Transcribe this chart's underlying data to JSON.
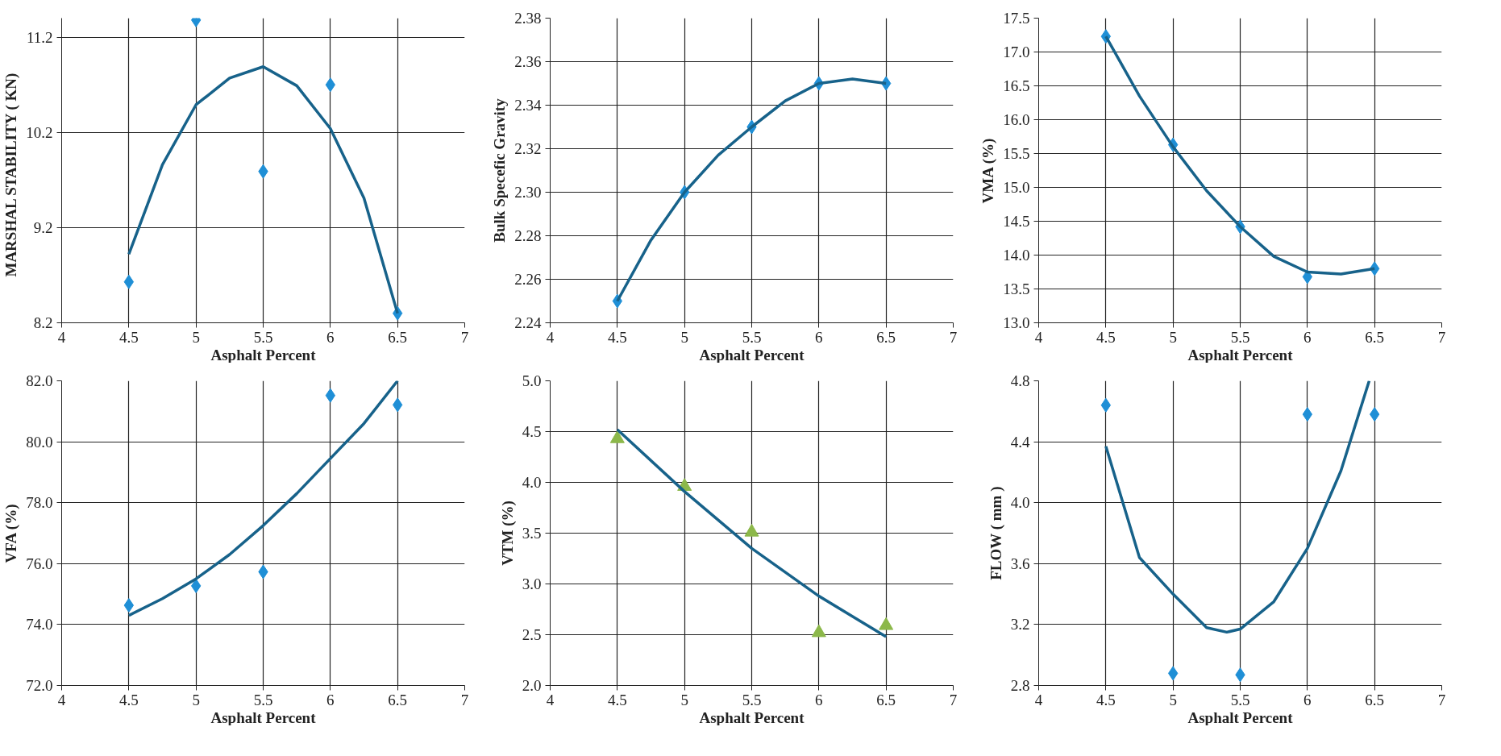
{
  "chart_data": [
    {
      "type": "scatter",
      "xlabel": "Asphalt Percent",
      "ylabel": "MARSHAL STABILITY   ( KN)",
      "xlim": [
        4,
        7
      ],
      "xticks": [
        4,
        4.5,
        5,
        5.5,
        6,
        6.5,
        7
      ],
      "ylim": [
        8.2,
        11.4
      ],
      "yticks": [
        8.2,
        9.2,
        10.2,
        11.2
      ],
      "grid": true,
      "series": [
        {
          "marker": "diamond",
          "color": "#1f8fd6",
          "x": [
            4.5,
            5,
            5.5,
            6,
            6.5
          ],
          "values": [
            8.63,
            11.38,
            9.79,
            10.7,
            8.3
          ]
        },
        {
          "type": "line",
          "color": "#17628a",
          "x": [
            4.5,
            4.75,
            5,
            5.25,
            5.5,
            5.75,
            6,
            6.25,
            6.5
          ],
          "values": [
            8.92,
            9.86,
            10.49,
            10.77,
            10.89,
            10.69,
            10.24,
            9.51,
            8.3
          ]
        }
      ]
    },
    {
      "type": "scatter",
      "xlabel": "Asphalt Percent",
      "ylabel": "Bulk Specefic Gravity",
      "xlim": [
        4,
        7
      ],
      "xticks": [
        4,
        4.5,
        5,
        5.5,
        6,
        6.5,
        7
      ],
      "ylim": [
        2.24,
        2.38
      ],
      "yticks": [
        {
          "value": 2.24,
          "label": "2.24"
        },
        {
          "value": 2.26,
          "label": "2.26"
        },
        {
          "value": 2.28,
          "label": "2.28"
        },
        {
          "value": 2.3,
          "label": "2.30"
        },
        {
          "value": 2.32,
          "label": "2.32"
        },
        {
          "value": 2.34,
          "label": "2.34"
        },
        {
          "value": 2.36,
          "label": "2.36"
        },
        {
          "value": 2.38,
          "label": "2.38"
        }
      ],
      "grid": true,
      "series": [
        {
          "marker": "diamond",
          "color": "#1f8fd6",
          "x": [
            4.5,
            5,
            5.5,
            6,
            6.5
          ],
          "values": [
            2.25,
            2.3,
            2.33,
            2.35,
            2.35
          ]
        },
        {
          "type": "line",
          "color": "#17628a",
          "x": [
            4.5,
            4.75,
            5,
            5.25,
            5.5,
            5.75,
            6,
            6.25,
            6.5
          ],
          "values": [
            2.25,
            2.278,
            2.3,
            2.317,
            2.33,
            2.342,
            2.35,
            2.352,
            2.35
          ]
        }
      ]
    },
    {
      "type": "scatter",
      "xlabel": "Asphalt Percent",
      "ylabel": "VMA (%)",
      "xlim": [
        4,
        7
      ],
      "xticks": [
        4,
        4.5,
        5,
        5.5,
        6,
        6.5,
        7
      ],
      "ylim": [
        13,
        17.5
      ],
      "yticks": [
        {
          "value": 13,
          "label": "13.0"
        },
        13.5,
        {
          "value": 14,
          "label": "14.0"
        },
        14.5,
        {
          "value": 15,
          "label": "15.0"
        },
        15.5,
        {
          "value": 16,
          "label": "16.0"
        },
        16.5,
        {
          "value": 17,
          "label": "17.0"
        },
        17.5
      ],
      "grid": true,
      "series": [
        {
          "marker": "diamond",
          "color": "#1f8fd6",
          "x": [
            4.5,
            5,
            5.5,
            6,
            6.5
          ],
          "values": [
            17.23,
            15.63,
            14.42,
            13.68,
            13.8
          ]
        },
        {
          "type": "line",
          "color": "#17628a",
          "x": [
            4.5,
            4.75,
            5,
            5.25,
            5.5,
            5.75,
            6,
            6.25,
            6.5
          ],
          "values": [
            17.23,
            16.35,
            15.6,
            14.95,
            14.42,
            13.98,
            13.75,
            13.72,
            13.8
          ]
        }
      ]
    },
    {
      "type": "scatter",
      "xlabel": "Asphalt Percent",
      "ylabel": "VFA (%)",
      "xlim": [
        4,
        7
      ],
      "xticks": [
        4,
        4.5,
        5,
        5.5,
        6,
        6.5,
        7
      ],
      "ylim": [
        72,
        82
      ],
      "yticks": [
        {
          "value": 72,
          "label": "72.0"
        },
        {
          "value": 74,
          "label": "74.0"
        },
        {
          "value": 76,
          "label": "76.0"
        },
        {
          "value": 78,
          "label": "78.0"
        },
        {
          "value": 80,
          "label": "80.0"
        },
        {
          "value": 82,
          "label": "82.0"
        }
      ],
      "grid": true,
      "series": [
        {
          "marker": "diamond",
          "color": "#1f8fd6",
          "x": [
            4.5,
            5,
            5.5,
            6,
            6.5
          ],
          "values": [
            74.63,
            75.27,
            75.73,
            81.52,
            81.21
          ]
        },
        {
          "type": "line",
          "color": "#17628a",
          "x": [
            4.5,
            4.75,
            5,
            5.25,
            5.5,
            5.75,
            6,
            6.25,
            6.5
          ],
          "values": [
            74.3,
            74.85,
            75.5,
            76.3,
            77.25,
            78.3,
            79.45,
            80.6,
            82.0
          ]
        }
      ]
    },
    {
      "type": "scatter",
      "xlabel": "Asphalt Percent",
      "ylabel": "VTM (%)",
      "xlim": [
        4,
        7
      ],
      "xticks": [
        4,
        4.5,
        5,
        5.5,
        6,
        6.5,
        7
      ],
      "ylim": [
        2,
        5
      ],
      "yticks": [
        {
          "value": 2,
          "label": "2.0"
        },
        2.5,
        {
          "value": 3,
          "label": "3.0"
        },
        3.5,
        {
          "value": 4,
          "label": "4.0"
        },
        4.5,
        {
          "value": 5,
          "label": "5.0"
        }
      ],
      "grid": true,
      "series": [
        {
          "marker": "triangle",
          "color": "#8cb84a",
          "x": [
            4.5,
            5,
            5.5,
            6,
            6.5
          ],
          "values": [
            4.43,
            3.96,
            3.51,
            2.52,
            2.59
          ]
        },
        {
          "type": "line",
          "color": "#17628a",
          "x": [
            4.5,
            5,
            5.5,
            6,
            6.5
          ],
          "values": [
            4.52,
            3.91,
            3.35,
            2.88,
            2.48
          ]
        }
      ]
    },
    {
      "type": "scatter",
      "xlabel": "Asphalt Percent",
      "ylabel": "FLOW ( mm )",
      "xlim": [
        4,
        7
      ],
      "xticks": [
        4,
        4.5,
        5,
        5.5,
        6,
        6.5,
        7
      ],
      "ylim": [
        2.8,
        4.8
      ],
      "yticks": [
        2.8,
        3.2,
        3.6,
        {
          "value": 4,
          "label": "4.0"
        },
        4.4,
        4.8
      ],
      "grid": true,
      "series": [
        {
          "marker": "diamond",
          "color": "#1f8fd6",
          "x": [
            4.5,
            5,
            5.5,
            6,
            6.5
          ],
          "values": [
            4.64,
            2.88,
            2.87,
            4.58,
            4.58
          ]
        },
        {
          "type": "line",
          "color": "#17628a",
          "x": [
            4.5,
            4.75,
            5,
            5.25,
            5.4,
            5.5,
            5.75,
            6,
            6.25,
            6.46
          ],
          "values": [
            4.37,
            3.64,
            3.4,
            3.18,
            3.15,
            3.17,
            3.35,
            3.7,
            4.21,
            4.8
          ]
        }
      ]
    }
  ]
}
